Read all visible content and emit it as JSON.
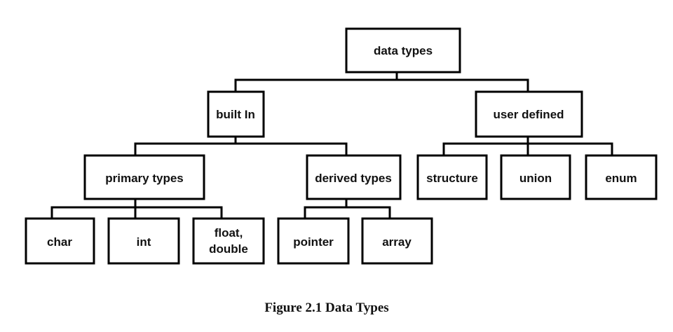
{
  "nodes": {
    "data_types": "data types",
    "built_in": "built In",
    "user_defined": "user defined",
    "primary_types": "primary types",
    "derived_types": "derived types",
    "structure": "structure",
    "union": "union",
    "enum": "enum",
    "char": "char",
    "int": "int",
    "float_line1": "float,",
    "float_line2": "double",
    "pointer": "pointer",
    "array": "array"
  },
  "caption": "Figure 2.1 Data Types"
}
